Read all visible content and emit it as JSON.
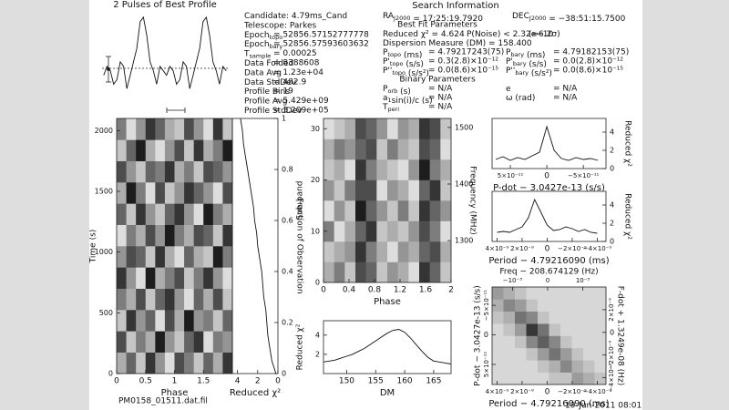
{
  "chart_data": [
    {
      "type": "line",
      "title": "2 Pulses of Best Profile",
      "ylim": [
        0,
        100
      ],
      "values": [
        30,
        40,
        35,
        20,
        25,
        45,
        40,
        15,
        30,
        45,
        60,
        90,
        95,
        75,
        45,
        35,
        20,
        40,
        35,
        30,
        40,
        35,
        20,
        25,
        45,
        40,
        15,
        30,
        45,
        60,
        90,
        95,
        75,
        45,
        35,
        20,
        40,
        35
      ]
    },
    {
      "type": "heatmap",
      "xlabel": "Phase",
      "ylabel": "Time (s)",
      "xlim": [
        0,
        2
      ],
      "xticks": [
        0,
        0.5,
        1,
        1.5
      ],
      "ylim": [
        0,
        2100
      ],
      "yticks": [
        0,
        500,
        1000,
        1500,
        2000
      ],
      "values": [
        [
          3,
          6,
          2,
          8,
          4,
          1,
          7,
          5,
          2,
          6,
          3,
          8
        ],
        [
          7,
          2,
          5,
          3,
          9,
          4,
          2,
          6,
          8,
          1,
          5,
          4
        ],
        [
          2,
          8,
          4,
          6,
          1,
          7,
          3,
          9,
          4,
          5,
          2,
          6
        ],
        [
          5,
          3,
          7,
          2,
          6,
          8,
          4,
          1,
          6,
          3,
          7,
          2
        ],
        [
          8,
          4,
          1,
          9,
          3,
          5,
          7,
          2,
          5,
          8,
          4,
          1
        ],
        [
          4,
          7,
          6,
          2,
          8,
          3,
          1,
          6,
          3,
          2,
          9,
          5
        ],
        [
          1,
          5,
          3,
          7,
          4,
          9,
          5,
          3,
          7,
          6,
          2,
          8
        ],
        [
          6,
          2,
          8,
          4,
          2,
          6,
          8,
          4,
          1,
          9,
          5,
          3
        ],
        [
          3,
          9,
          5,
          1,
          7,
          2,
          4,
          8,
          6,
          4,
          1,
          7
        ],
        [
          7,
          4,
          2,
          6,
          5,
          8,
          3,
          5,
          2,
          7,
          6,
          4
        ],
        [
          2,
          6,
          9,
          3,
          1,
          4,
          7,
          2,
          8,
          3,
          5,
          9
        ],
        [
          5,
          1,
          4,
          8,
          6,
          3,
          2,
          7,
          4,
          1,
          8,
          2
        ]
      ]
    },
    {
      "type": "line",
      "xlabel": "Reduced χ²",
      "ylabel": "Fraction of Observation",
      "yaxis": "right",
      "xlim": [
        4.5,
        0
      ],
      "xticks": [
        4,
        2,
        0
      ],
      "ylim": [
        0,
        1
      ],
      "yticks": [
        0,
        0.2,
        0.4,
        0.6,
        0.8,
        1
      ],
      "y": [
        0,
        0.05,
        0.1,
        0.15,
        0.2,
        0.25,
        0.3,
        0.35,
        0.4,
        0.45,
        0.5,
        0.55,
        0.6,
        0.65,
        0.7,
        0.75,
        0.8,
        0.85,
        0.9,
        0.95,
        1
      ],
      "values": [
        0.2,
        0.6,
        0.8,
        1.0,
        1.1,
        1.2,
        1.4,
        1.5,
        1.6,
        1.8,
        2.0,
        2.1,
        2.3,
        2.4,
        2.6,
        2.8,
        3.0,
        3.2,
        3.4,
        3.5,
        3.7
      ]
    },
    {
      "type": "heatmap",
      "xlabel": "Phase",
      "ylabel": "Sub-band",
      "y2label": "Frequency (MHz)",
      "xlim": [
        0,
        2
      ],
      "xticks": [
        0,
        0.4,
        0.8,
        1.2,
        1.6,
        2
      ],
      "ylim": [
        0,
        32
      ],
      "yticks": [
        0,
        10,
        20,
        30
      ],
      "y2lim": [
        1226,
        1516
      ],
      "y2ticks": [
        1300,
        1400,
        1500
      ],
      "values": [
        [
          3,
          5,
          2,
          7,
          6,
          2,
          4,
          3,
          1,
          8,
          6,
          2
        ],
        [
          2,
          3,
          4,
          8,
          5,
          3,
          1,
          4,
          3,
          6,
          7,
          3
        ],
        [
          5,
          1,
          3,
          6,
          8,
          2,
          3,
          2,
          4,
          7,
          5,
          1
        ],
        [
          1,
          4,
          2,
          9,
          6,
          4,
          2,
          5,
          2,
          8,
          6,
          4
        ],
        [
          4,
          2,
          5,
          7,
          7,
          1,
          4,
          3,
          1,
          6,
          8,
          2
        ],
        [
          2,
          3,
          1,
          8,
          5,
          3,
          2,
          1,
          4,
          9,
          5,
          3
        ],
        [
          3,
          5,
          4,
          6,
          7,
          2,
          5,
          3,
          2,
          7,
          6,
          1
        ],
        [
          1,
          2,
          3,
          7,
          6,
          4,
          1,
          4,
          3,
          8,
          7,
          2
        ]
      ]
    },
    {
      "type": "line",
      "xlabel": "DM",
      "ylabel": "Reduced χ²",
      "xlim": [
        146,
        168
      ],
      "xticks": [
        150,
        155,
        160,
        165
      ],
      "ylim": [
        0,
        5.5
      ],
      "yticks": [
        2,
        4
      ],
      "x": [
        146,
        147,
        148,
        149,
        150,
        151,
        152,
        153,
        154,
        155,
        156,
        157,
        158,
        159,
        160,
        161,
        162,
        163,
        164,
        165,
        166,
        167,
        168
      ],
      "values": [
        1.2,
        1.3,
        1.4,
        1.6,
        1.8,
        2.0,
        2.3,
        2.6,
        3.0,
        3.4,
        3.8,
        4.2,
        4.5,
        4.6,
        4.3,
        3.7,
        3.0,
        2.3,
        1.7,
        1.3,
        1.2,
        1.1,
        1.0
      ]
    },
    {
      "type": "line",
      "xlabel": "P-dot − 3.0427e-13 (s/s)",
      "ylabel": "Reduced χ²",
      "yaxis": "right",
      "xlim": [
        7.5e-11,
        -8.1e-11
      ],
      "xticks": [
        {
          "value": 5e-11,
          "label": "5×10⁻¹¹"
        },
        0,
        {
          "value": -5e-11,
          "label": "−5×10⁻¹¹"
        }
      ],
      "ylim": [
        0,
        5.5
      ],
      "yticks": [
        0,
        2,
        4
      ],
      "x": [
        7e-11,
        6e-11,
        5e-11,
        4e-11,
        3e-11,
        2e-11,
        1e-11,
        0,
        -1e-11,
        -2e-11,
        -3e-11,
        -4e-11,
        -5e-11,
        -6e-11,
        -7e-11
      ],
      "values": [
        1.0,
        1.3,
        0.9,
        1.2,
        1.0,
        1.4,
        1.8,
        4.6,
        2.0,
        1.1,
        0.9,
        1.2,
        1.0,
        1.1,
        0.9
      ]
    },
    {
      "type": "line",
      "xlabel": "Period − 4.79216090 (ms)",
      "ylabel": "Reduced χ²",
      "yaxis": "right",
      "xlim": [
        4.4e-09,
        -4.7e-09
      ],
      "xticks": [
        {
          "value": 4e-09,
          "label": "4×10⁻⁹"
        },
        {
          "value": 2e-09,
          "label": "2×10⁻⁹"
        },
        0,
        {
          "value": -2e-09,
          "label": "−2×10⁻⁹"
        },
        {
          "value": -4e-09,
          "label": "−4×10⁻⁹"
        }
      ],
      "ylim": [
        0,
        5.5
      ],
      "yticks": [
        0,
        2,
        4
      ],
      "x": [
        4e-09,
        3.5e-09,
        3e-09,
        2.5e-09,
        2e-09,
        1.5e-09,
        1e-09,
        5e-10,
        0,
        -5e-10,
        -1e-09,
        -1.5e-09,
        -2e-09,
        -2.5e-09,
        -3e-09,
        -3.5e-09,
        -4e-09
      ],
      "values": [
        1.0,
        1.1,
        1.0,
        1.3,
        1.6,
        2.6,
        4.6,
        3.2,
        1.8,
        1.2,
        1.3,
        1.6,
        1.4,
        1.1,
        1.3,
        1.0,
        0.9
      ]
    },
    {
      "type": "heatmap",
      "palette": "light",
      "xlabel": "Period − 4.79216090 (ms)",
      "ylabel": "P-dot − 3.0427e-13 (s/s)",
      "x2label": "Freq − 208.674129 (Hz)",
      "y2label": "F-dot + 1.3249e-08 (Hz)",
      "xlim": [
        4.4e-09,
        -4.7e-09
      ],
      "xticks": [
        {
          "value": 4e-09,
          "label": "4×10⁻⁹"
        },
        {
          "value": 2e-09,
          "label": "2×10⁻⁹"
        },
        0,
        {
          "value": -2e-09,
          "label": "−2×10⁻⁹"
        },
        {
          "value": -4e-09,
          "label": "−4×10⁻⁹"
        }
      ],
      "ylim": [
        8.4e-11,
        -8.1e-11
      ],
      "yticks": [
        {
          "value": 5e-11,
          "label": "5×10⁻¹¹"
        },
        0,
        {
          "value": -5e-11,
          "label": "−5×10⁻¹¹"
        }
      ],
      "x2lim": [
        -0.00158,
        0.00166
      ],
      "x2ticks": [
        {
          "value": -0.001,
          "label": "−10⁻³"
        },
        0,
        {
          "value": 0.001,
          "label": "10⁻³"
        }
      ],
      "y2lim": [
        -4.6e-09,
        4e-09
      ],
      "y2ticks": [
        {
          "value": 2e-09,
          "label": "2×10⁻⁹"
        },
        0,
        {
          "value": -2e-09,
          "label": "−2×10⁻⁹"
        },
        {
          "value": -4e-09,
          "label": "−4×10⁻⁹"
        }
      ],
      "values": [
        [
          1,
          1,
          1,
          1,
          1,
          2,
          2,
          4,
          3,
          2
        ],
        [
          1,
          1,
          1,
          1,
          2,
          3,
          5,
          3,
          2,
          1
        ],
        [
          1,
          1,
          1,
          2,
          4,
          6,
          4,
          2,
          1,
          1
        ],
        [
          1,
          1,
          2,
          5,
          7,
          5,
          2,
          1,
          1,
          1
        ],
        [
          1,
          2,
          4,
          9,
          6,
          2,
          1,
          1,
          1,
          1
        ],
        [
          2,
          3,
          6,
          5,
          2,
          1,
          1,
          1,
          1,
          1
        ],
        [
          3,
          5,
          4,
          2,
          1,
          1,
          1,
          1,
          1,
          1
        ],
        [
          4,
          3,
          2,
          1,
          1,
          1,
          1,
          1,
          1,
          1
        ]
      ]
    }
  ],
  "info": {
    "left": [
      {
        "label": [
          "Candidate:  4.79ms_Cand"
        ]
      },
      {
        "label": [
          "Telescope:  Parkes"
        ]
      },
      {
        "label": [
          "Epoch",
          {
            "sub": "topo"
          }
        ],
        "value": "=  52856.57152777778"
      },
      {
        "label": [
          "Epoch",
          {
            "sub": "bary"
          }
        ],
        "value": "=  52856.57593603632"
      },
      {
        "label": [
          "T",
          {
            "sub": "sample"
          }
        ],
        "value": "=  0.00025"
      },
      {
        "label": [
          "Data Folded"
        ],
        "value": "=  8388608"
      },
      {
        "label": [
          "Data Avg"
        ],
        "value": "=  1.23e+04"
      },
      {
        "label": [
          "Data StdDev"
        ],
        "value": "=  482.9"
      },
      {
        "label": [
          "Profile Bins"
        ],
        "value": "=  19"
      },
      {
        "label": [
          "Profile Avg"
        ],
        "value": "=  5.429e+09"
      },
      {
        "label": [
          "Profile StdDev"
        ],
        "value": "=  3.209e+05"
      }
    ],
    "title": "Search Information",
    "fit_title": "Best Fit Parameters",
    "binary_title": "Binary Parameters",
    "right": [
      {
        "label": [
          "RA",
          {
            "sub": "J2000"
          },
          " = 17:25:19.7920"
        ]
      },
      {
        "label": [
          "DEC",
          {
            "sub": "J2000"
          },
          " = −38:51:15.7500"
        ]
      },
      {
        "label": [
          "Reduced χ² = 4.624"
        ]
      },
      {
        "label": [
          "P(Noise) < 2.32e−10"
        ]
      },
      {
        "label": [
          "(≈6.2σ)"
        ]
      },
      {
        "label": [
          "Dispersion Measure (DM) = 158.400"
        ]
      },
      {
        "label": [
          "P",
          {
            "sub": "topo"
          },
          " (ms)"
        ],
        "value": "=  4.79217243(75)"
      },
      {
        "label": [
          "P",
          {
            "sub": "bary"
          },
          " (ms)"
        ],
        "value": "=  4.79182153(75)"
      },
      {
        "label": [
          "P'",
          {
            "sub": "topo"
          },
          " (s/s)"
        ],
        "value": "=  0.3(2.8)×10⁻¹²"
      },
      {
        "label": [
          "P'",
          {
            "sub": "bary"
          },
          " (s/s)"
        ],
        "value": "=  0.0(2.8)×10⁻¹²"
      },
      {
        "label": [
          "P''",
          {
            "sub": "topo"
          },
          " (s/s²)"
        ],
        "value": "=  0.0(8.6)×10⁻¹⁵"
      },
      {
        "label": [
          "P''",
          {
            "sub": "bary"
          },
          " (s/s²)"
        ],
        "value": "=  0.0(8.6)×10⁻¹⁵"
      },
      {
        "label": [
          "P",
          {
            "sub": "orb"
          },
          " (s)"
        ],
        "value": "=  N/A"
      },
      {
        "label": [
          "e"
        ],
        "value": "=  N/A"
      },
      {
        "label": [
          "a",
          {
            "sub": "1"
          },
          "sin(i)/c (s)"
        ],
        "value": "=  N/A"
      },
      {
        "label": [
          "ω (rad)"
        ],
        "value": "=  N/A"
      },
      {
        "label": [
          "T",
          {
            "sub": "peri"
          }
        ],
        "value": "=  N/A"
      }
    ]
  },
  "footer": {
    "file": "PM0158_01511.dat.fil",
    "date": "19-Jun-2011 08:01"
  }
}
